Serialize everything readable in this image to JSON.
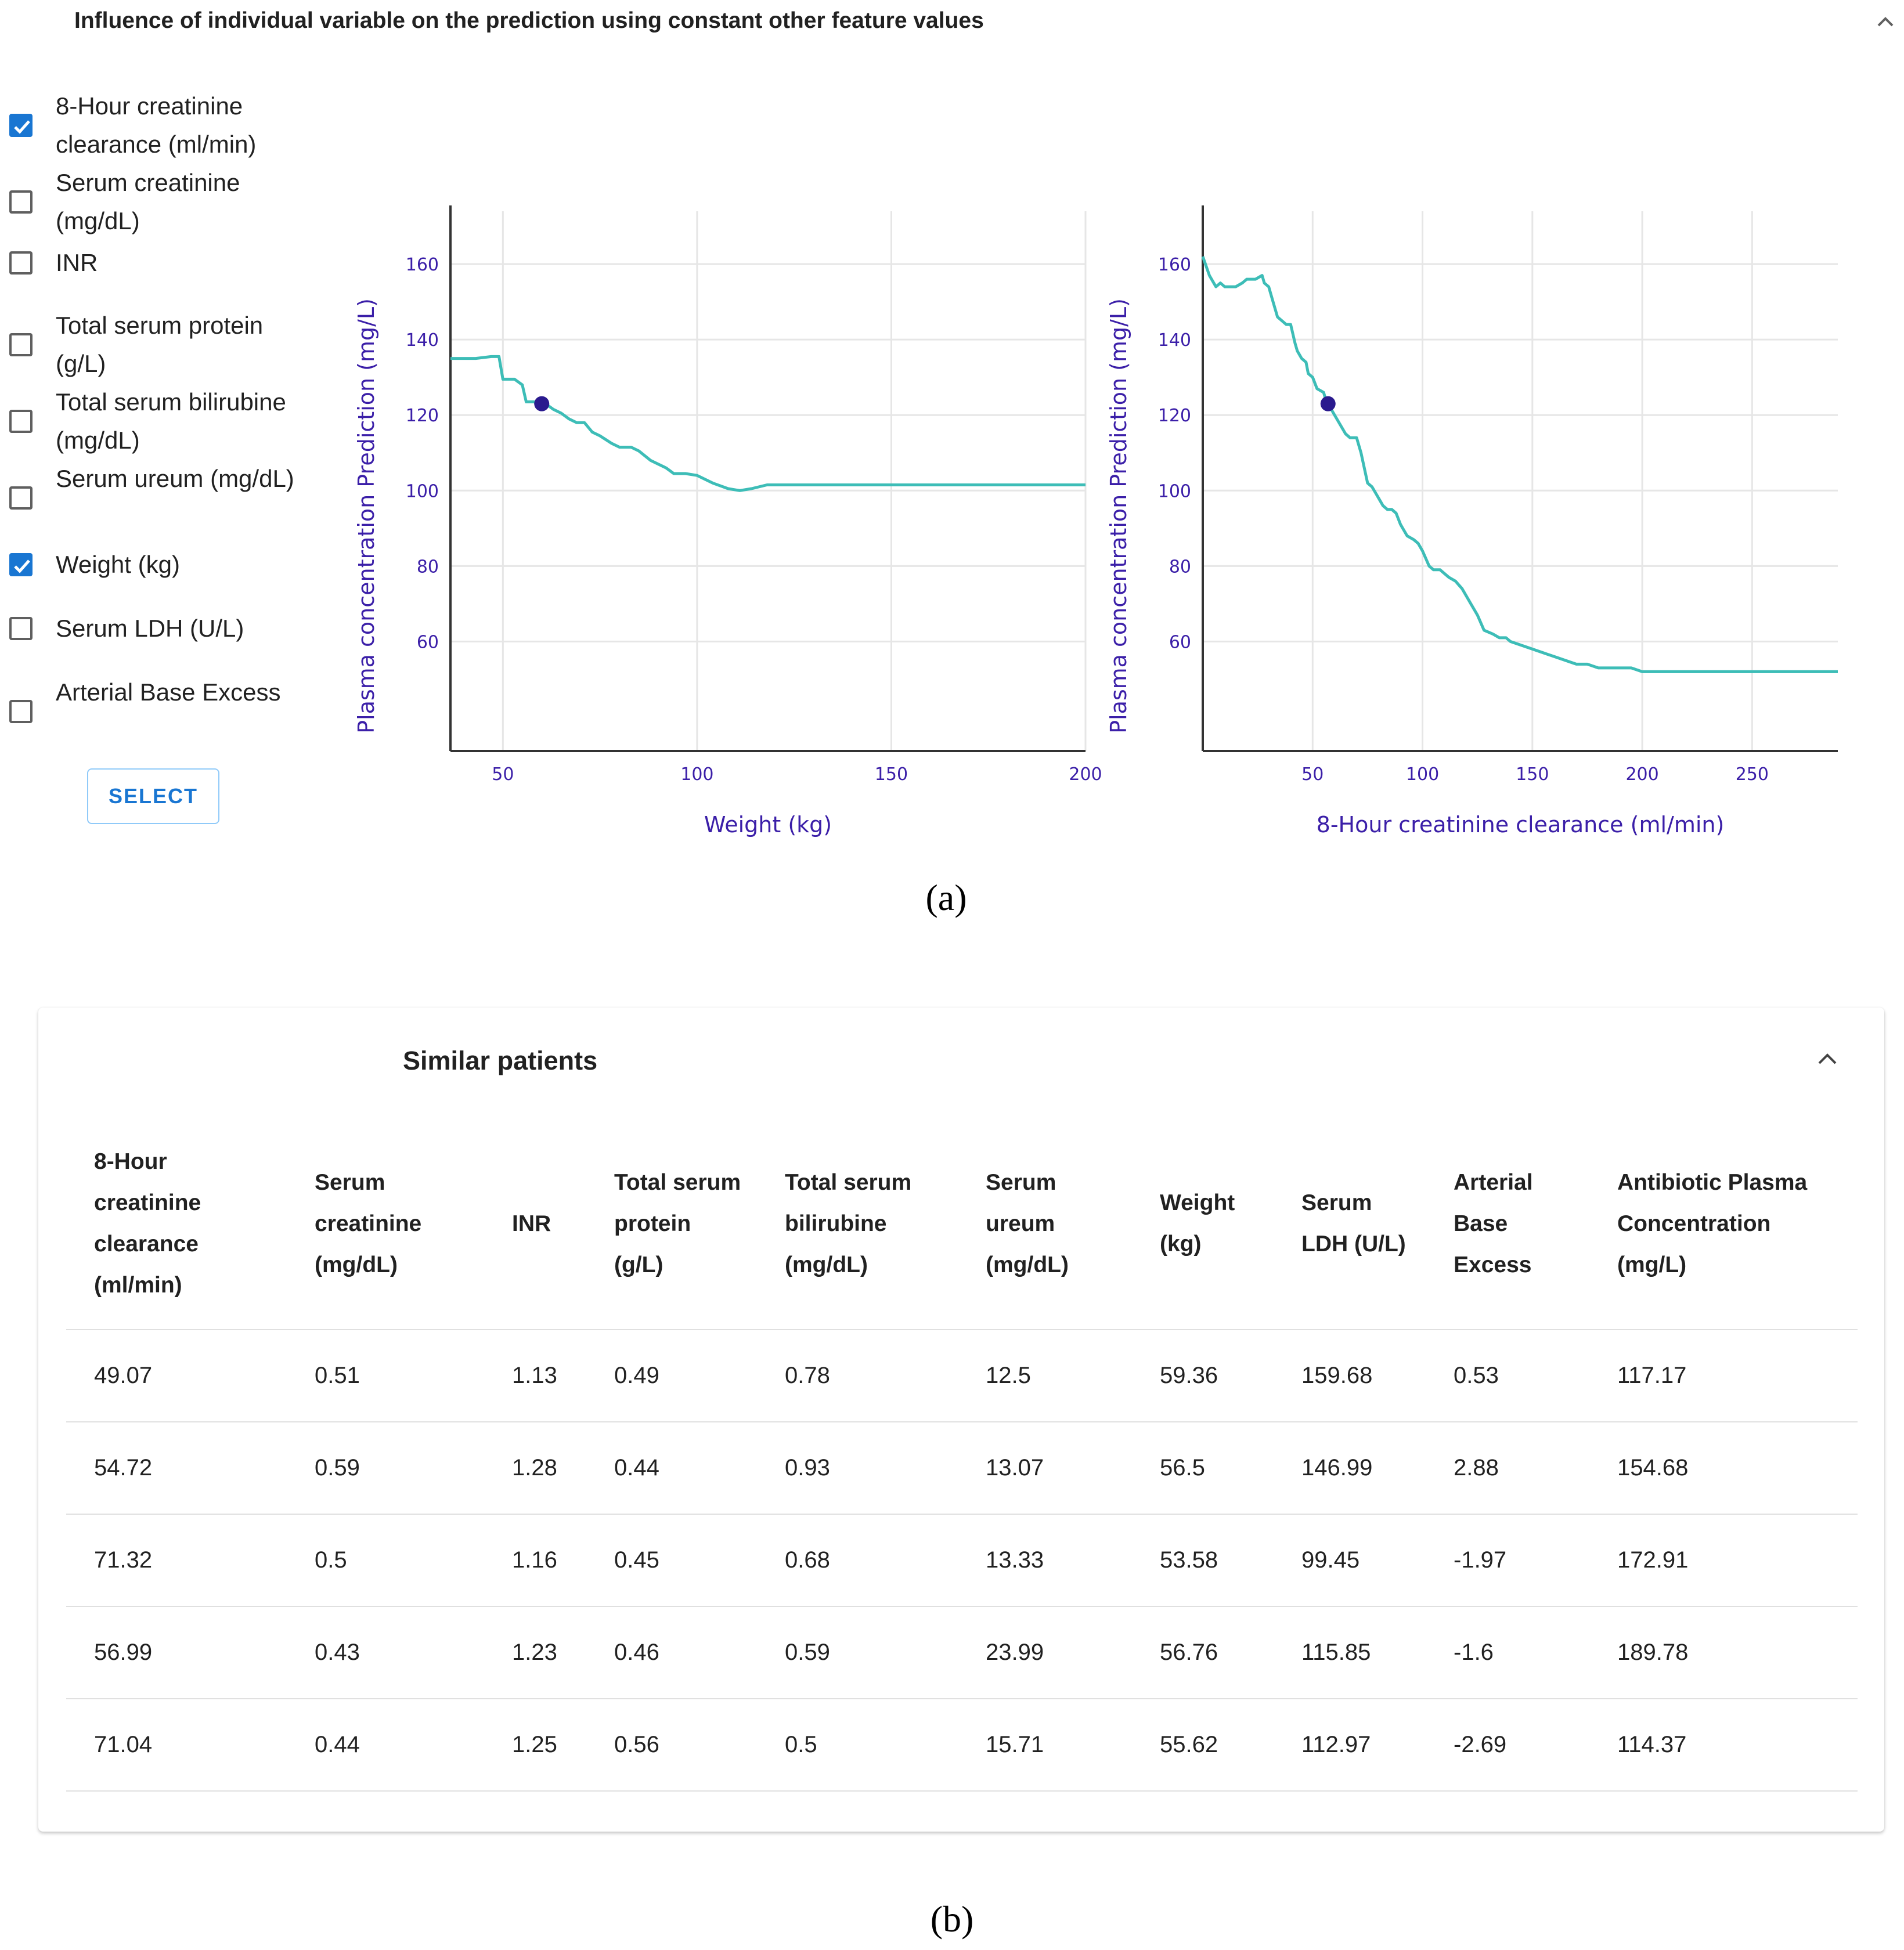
{
  "influence": {
    "title": "Influence of individual variable on the prediction using constant other feature values",
    "features": [
      {
        "label": "8-Hour creatinine clearance (ml/min)",
        "checked": true
      },
      {
        "label": "Serum creatinine (mg/dL)",
        "checked": false
      },
      {
        "label": "INR",
        "checked": false
      },
      {
        "label": "Total serum protein (g/L)",
        "checked": false
      },
      {
        "label": "Total serum bilirubine (mg/dL)",
        "checked": false
      },
      {
        "label": "Serum ureum (mg/dL)",
        "checked": false
      },
      {
        "label": "Weight (kg)",
        "checked": true
      },
      {
        "label": "Serum LDH (U/L)",
        "checked": false
      },
      {
        "label": "Arterial Base Excess",
        "checked": false
      }
    ],
    "select_label": "SELECT",
    "caption": "(a)"
  },
  "chart_data": [
    {
      "type": "line",
      "title": "",
      "xlabel": "Weight (kg)",
      "ylabel": "Plasma concentration Prediction (mg/L)",
      "xlim": [
        36.5,
        200
      ],
      "ylim": [
        31,
        174
      ],
      "xticks": [
        50,
        100,
        150,
        200
      ],
      "yticks": [
        60,
        80,
        100,
        120,
        140,
        160
      ],
      "grid": true,
      "line_color": "#3dbdb7",
      "marker_color": "#2a1a8e",
      "label_color": "#3b1fa8",
      "series": [
        {
          "name": "prediction",
          "x": [
            36.5,
            43,
            47,
            48,
            49,
            50,
            53,
            55,
            56,
            58,
            59,
            61,
            63,
            65,
            67,
            69,
            71,
            73,
            75,
            78,
            80,
            83,
            85,
            88,
            90,
            92,
            94,
            97,
            100,
            104,
            108,
            111,
            114,
            118,
            121,
            130,
            150,
            170,
            200
          ],
          "y": [
            135,
            135,
            135.5,
            135.5,
            135.5,
            129.5,
            129.5,
            128,
            123.5,
            123.5,
            123,
            123,
            121.5,
            120.5,
            119,
            118,
            118,
            115.5,
            114.5,
            112.5,
            111.5,
            111.5,
            110.5,
            108,
            107,
            106,
            104.5,
            104.5,
            104,
            102,
            100.5,
            100,
            100.5,
            101.5,
            101.5,
            101.5,
            101.5,
            101.5,
            101.5
          ]
        }
      ],
      "marker": {
        "x": 60,
        "y": 123
      }
    },
    {
      "type": "line",
      "title": "",
      "xlabel": "8-Hour creatinine clearance (ml/min)",
      "ylabel": "Plasma concentration Prediction (mg/L)",
      "xlim": [
        0,
        289
      ],
      "ylim": [
        31,
        174
      ],
      "xticks": [
        50,
        100,
        150,
        200,
        250
      ],
      "yticks": [
        60,
        80,
        100,
        120,
        140,
        160
      ],
      "grid": true,
      "line_color": "#3dbdb7",
      "marker_color": "#2a1a8e",
      "label_color": "#3b1fa8",
      "series": [
        {
          "name": "prediction",
          "x": [
            0,
            3,
            6,
            8,
            10,
            12,
            15,
            18,
            20,
            24,
            27,
            28,
            30,
            32,
            34,
            36,
            38,
            40,
            42,
            43,
            45,
            47,
            48,
            50,
            52,
            55,
            56,
            58,
            60,
            62,
            65,
            67,
            70,
            72,
            75,
            77,
            79,
            82,
            84,
            86,
            88,
            90,
            93,
            96,
            98,
            100,
            103,
            105,
            108,
            110,
            112,
            115,
            118,
            122,
            125,
            128,
            132,
            135,
            138,
            140,
            145,
            150,
            155,
            160,
            165,
            170,
            175,
            180,
            185,
            190,
            195,
            200,
            210,
            220,
            250,
            289
          ],
          "y": [
            162,
            157,
            154,
            155,
            154,
            154,
            154,
            155,
            156,
            156,
            157,
            155,
            154,
            150,
            146,
            145,
            144,
            144,
            139,
            137,
            135,
            134,
            131,
            130,
            127,
            126,
            124,
            122,
            120,
            118,
            115,
            114,
            114,
            110,
            102,
            101,
            99,
            96,
            95,
            95,
            94,
            91,
            88,
            87,
            86,
            84,
            80,
            79,
            79,
            78,
            77,
            76,
            74,
            70,
            67,
            63,
            62,
            61,
            61,
            60,
            59,
            58,
            57,
            56,
            55,
            54,
            54,
            53,
            53,
            53,
            53,
            52,
            52,
            52,
            52,
            52
          ]
        }
      ],
      "marker": {
        "x": 57,
        "y": 123
      }
    }
  ],
  "similar": {
    "title": "Similar patients",
    "headers": [
      "8-Hour creatinine clearance (ml/min)",
      "Serum creatinine (mg/dL)",
      "INR",
      "Total serum protein (g/L)",
      "Total serum bilirubine (mg/dL)",
      "Serum ureum (mg/dL)",
      "Weight (kg)",
      "Serum LDH (U/L)",
      "Arterial Base Excess",
      "Antibiotic Plasma Concentration (mg/L)"
    ],
    "rows": [
      [
        "49.07",
        "0.51",
        "1.13",
        "0.49",
        "0.78",
        "12.5",
        "59.36",
        "159.68",
        "0.53",
        "117.17"
      ],
      [
        "54.72",
        "0.59",
        "1.28",
        "0.44",
        "0.93",
        "13.07",
        "56.5",
        "146.99",
        "2.88",
        "154.68"
      ],
      [
        "71.32",
        "0.5",
        "1.16",
        "0.45",
        "0.68",
        "13.33",
        "53.58",
        "99.45",
        "-1.97",
        "172.91"
      ],
      [
        "56.99",
        "0.43",
        "1.23",
        "0.46",
        "0.59",
        "23.99",
        "56.76",
        "115.85",
        "-1.6",
        "189.78"
      ],
      [
        "71.04",
        "0.44",
        "1.25",
        "0.56",
        "0.5",
        "15.71",
        "55.62",
        "112.97",
        "-2.69",
        "114.37"
      ]
    ],
    "caption": "(b)"
  }
}
